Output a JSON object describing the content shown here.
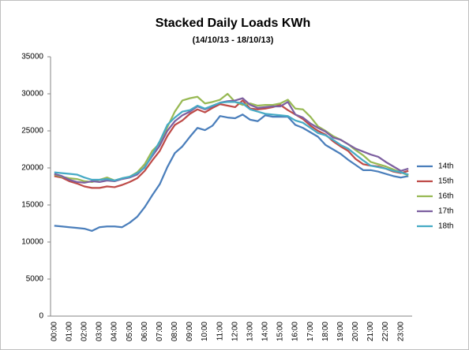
{
  "chart_data": {
    "type": "line",
    "title": "Stacked Daily Loads KWh",
    "subtitle": "(14/10/13 - 18/10/13)",
    "categories": [
      "00:00",
      null,
      "01:00",
      null,
      "02:00",
      null,
      "03:00",
      null,
      "04:00",
      null,
      "05:00",
      null,
      "06:00",
      null,
      "07:00",
      null,
      "08:00",
      null,
      "09:00",
      null,
      "10:00",
      null,
      "11:00",
      null,
      "12:00",
      null,
      "13:00",
      null,
      "14:00",
      null,
      "15:00",
      null,
      "16:00",
      null,
      "17:00",
      null,
      "18:00",
      null,
      "19:00",
      null,
      "20:00",
      null,
      "21:00",
      null,
      "22:00",
      null,
      "23:00",
      null
    ],
    "series": [
      {
        "name": "14th",
        "color": "#4a7ebb",
        "values": [
          12200,
          12100,
          12000,
          11900,
          11800,
          11500,
          12000,
          12100,
          12100,
          12000,
          12600,
          13400,
          14700,
          16300,
          17800,
          20100,
          22000,
          22900,
          24200,
          25400,
          25100,
          25700,
          27000,
          26800,
          26700,
          27200,
          26500,
          26300,
          27100,
          26900,
          26900,
          26900,
          25800,
          25400,
          24800,
          24200,
          23100,
          22500,
          21900,
          21100,
          20400,
          19700,
          19700,
          19500,
          19200,
          18900,
          18700,
          18900
        ]
      },
      {
        "name": "15th",
        "color": "#be4b48",
        "values": [
          18900,
          18700,
          18200,
          17900,
          17500,
          17300,
          17300,
          17500,
          17400,
          17700,
          18100,
          18600,
          19600,
          21000,
          22300,
          24300,
          25800,
          26400,
          27300,
          27900,
          27500,
          28100,
          28600,
          28400,
          28200,
          29100,
          28000,
          27900,
          28000,
          28200,
          28500,
          27800,
          27200,
          26600,
          25700,
          25000,
          24500,
          23600,
          22900,
          22300,
          21200,
          20500,
          20300,
          20200,
          19900,
          19500,
          19300,
          19600
        ]
      },
      {
        "name": "16th",
        "color": "#98b954",
        "values": [
          19100,
          18800,
          18600,
          18500,
          18200,
          18100,
          18400,
          18700,
          18300,
          18600,
          18800,
          19400,
          20500,
          22300,
          23300,
          25500,
          27600,
          29100,
          29400,
          29600,
          28700,
          28900,
          29200,
          30000,
          28900,
          28500,
          28700,
          28400,
          28500,
          28500,
          28700,
          29200,
          28000,
          27900,
          26900,
          25600,
          25000,
          24300,
          23800,
          23200,
          22400,
          21700,
          20800,
          20500,
          20200,
          19800,
          19400,
          19000
        ]
      },
      {
        "name": "17th",
        "color": "#7d60a0",
        "values": [
          19200,
          18900,
          18400,
          18100,
          18000,
          18200,
          18100,
          18300,
          18200,
          18500,
          18700,
          19100,
          20100,
          21600,
          23000,
          25000,
          26300,
          27100,
          27600,
          28300,
          27900,
          28300,
          28800,
          29000,
          29100,
          29400,
          28500,
          28100,
          28200,
          28300,
          28300,
          28900,
          27200,
          26800,
          26000,
          25400,
          24900,
          24100,
          23800,
          23200,
          22600,
          22200,
          21800,
          21500,
          20800,
          20200,
          19600,
          19900
        ]
      },
      {
        "name": "18th",
        "color": "#46aac5",
        "values": [
          19400,
          19300,
          19200,
          19100,
          18700,
          18400,
          18400,
          18500,
          18300,
          18600,
          18800,
          19300,
          20000,
          21800,
          23600,
          25800,
          26800,
          27600,
          27800,
          28400,
          28000,
          28400,
          28800,
          28900,
          28900,
          28700,
          27900,
          27600,
          27300,
          27200,
          27100,
          27000,
          26400,
          26100,
          25400,
          24700,
          24400,
          23800,
          23100,
          22600,
          21800,
          21000,
          20300,
          20100,
          19900,
          19600,
          19400,
          19100
        ]
      }
    ],
    "ylim": [
      0,
      35000
    ],
    "yticks": [
      0,
      5000,
      10000,
      15000,
      20000,
      25000,
      30000,
      35000
    ],
    "grid": false,
    "legend": "right"
  }
}
